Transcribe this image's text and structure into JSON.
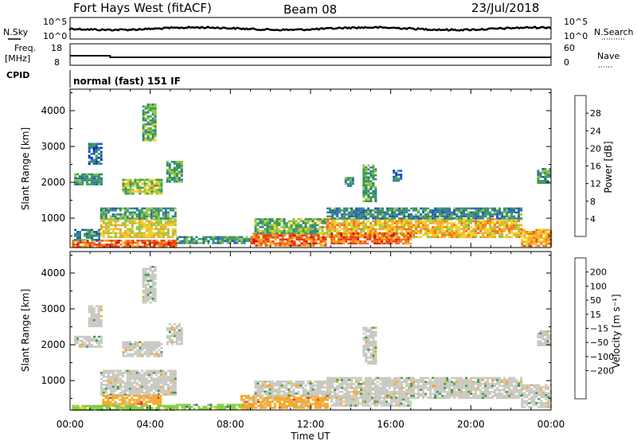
{
  "header": {
    "station": "Fort Hays West (fitACF)",
    "beam": "Beam 08",
    "date": "23/Jul/2018"
  },
  "strip_panels": {
    "nsky_label": "N.Sky",
    "nsearch_label": "N.Search",
    "nsky_ticks": [
      "10^5",
      "10^0"
    ],
    "nsky_right_ticks": [
      "10^5",
      "10^0"
    ],
    "freq_label_line1": "Freq.",
    "freq_label_line2": "[MHz]",
    "freq_ticks": [
      "18",
      "8"
    ],
    "nave_label": "Nave",
    "nave_ticks": [
      "60",
      "0"
    ],
    "cpid_label": "CPID",
    "cpid_value": "normal (fast) 151 IF"
  },
  "chart_data": [
    {
      "type": "heatmap",
      "name": "power",
      "xlabel": "",
      "ylabel": "Slant Range [km]",
      "x_ticks": [
        "00:00",
        "04:00",
        "08:00",
        "12:00",
        "16:00",
        "20:00",
        "00:00"
      ],
      "x_range_hours": [
        0,
        24
      ],
      "y_ticks": [
        1000,
        2000,
        3000,
        4000
      ],
      "ylim": [
        180,
        4600
      ],
      "colorbar": {
        "label": "Power [dB]",
        "range": [
          0,
          32
        ],
        "ticks": [
          4,
          8,
          12,
          16,
          20,
          24,
          28
        ],
        "colors": [
          "#0022dd",
          "#2255bb",
          "#2e7d8c",
          "#3a9a55",
          "#8cc63f",
          "#f0d020",
          "#f5a623",
          "#f07010",
          "#e83a10",
          "#dd0000"
        ]
      },
      "regions": [
        {
          "t": [
            0.1,
            5.3
          ],
          "r": [
            200,
            400
          ],
          "level": 26
        },
        {
          "t": [
            1.5,
            5.2
          ],
          "r": [
            500,
            1000
          ],
          "level": 18
        },
        {
          "t": [
            1.5,
            5.2
          ],
          "r": [
            1000,
            1300
          ],
          "level": 10
        },
        {
          "t": [
            0.2,
            1.5
          ],
          "r": [
            400,
            700
          ],
          "level": 8
        },
        {
          "t": [
            5.3,
            9.0
          ],
          "r": [
            300,
            500
          ],
          "level": 9
        },
        {
          "t": [
            9.0,
            12.8
          ],
          "r": [
            250,
            600
          ],
          "level": 26
        },
        {
          "t": [
            9.2,
            12.8
          ],
          "r": [
            600,
            1000
          ],
          "level": 12
        },
        {
          "t": [
            12.8,
            22.5
          ],
          "r": [
            500,
            1000
          ],
          "level": 20
        },
        {
          "t": [
            12.8,
            22.5
          ],
          "r": [
            1000,
            1300
          ],
          "level": 8
        },
        {
          "t": [
            13.0,
            17.0
          ],
          "r": [
            300,
            600
          ],
          "level": 26
        },
        {
          "t": [
            22.5,
            24.0
          ],
          "r": [
            250,
            700
          ],
          "level": 22
        },
        {
          "t": [
            0.2,
            1.6
          ],
          "r": [
            1950,
            2250
          ],
          "level": 9
        },
        {
          "t": [
            0.9,
            1.6
          ],
          "r": [
            2500,
            3100
          ],
          "level": 6
        },
        {
          "t": [
            2.6,
            4.6
          ],
          "r": [
            1700,
            2100
          ],
          "level": 15
        },
        {
          "t": [
            4.8,
            5.6
          ],
          "r": [
            2000,
            2600
          ],
          "level": 11
        },
        {
          "t": [
            14.6,
            15.2
          ],
          "r": [
            1500,
            2500
          ],
          "level": 11
        },
        {
          "t": [
            13.7,
            14.1
          ],
          "r": [
            1900,
            2150
          ],
          "level": 9
        },
        {
          "t": [
            16.1,
            16.5
          ],
          "r": [
            2050,
            2350
          ],
          "level": 6
        },
        {
          "t": [
            23.3,
            24.0
          ],
          "r": [
            2000,
            2400
          ],
          "level": 10
        },
        {
          "t": [
            3.6,
            4.3
          ],
          "r": [
            3200,
            4200
          ],
          "level": 12
        }
      ]
    },
    {
      "type": "heatmap",
      "name": "velocity",
      "xlabel": "Time UT",
      "ylabel": "Slant Range [km]",
      "x_ticks": [
        "00:00",
        "04:00",
        "08:00",
        "12:00",
        "16:00",
        "20:00",
        "00:00"
      ],
      "x_range_hours": [
        0,
        24
      ],
      "y_ticks": [
        1000,
        2000,
        3000,
        4000
      ],
      "ylim": [
        180,
        4600
      ],
      "colorbar": {
        "label": "Velocity [m s⁻¹]",
        "ticks": [
          200,
          100,
          50,
          15,
          -15,
          -50,
          -100,
          -200
        ],
        "tick_labels": [
          "200",
          "100",
          "50",
          "15",
          "−15",
          "−50",
          "−100",
          "−200"
        ],
        "colors": [
          "#2040c0",
          "#3a6a80",
          "#3a9a55",
          "#80cc40",
          "#c8c8c0",
          "#f0d020",
          "#f5a623",
          "#f07010",
          "#e83a10",
          "#dd0000"
        ]
      },
      "regions": [
        {
          "t": [
            1.5,
            5.2
          ],
          "r": [
            600,
            1300
          ],
          "level": 4
        },
        {
          "t": [
            1.6,
            4.5
          ],
          "r": [
            300,
            600
          ],
          "level": 6
        },
        {
          "t": [
            0.1,
            5.3
          ],
          "r": [
            200,
            320
          ],
          "level": 3
        },
        {
          "t": [
            5.3,
            9.0
          ],
          "r": [
            200,
            350
          ],
          "level": 3
        },
        {
          "t": [
            8.5,
            12.8
          ],
          "r": [
            250,
            600
          ],
          "level": 6
        },
        {
          "t": [
            9.2,
            12.8
          ],
          "r": [
            600,
            1000
          ],
          "level": 4
        },
        {
          "t": [
            12.8,
            22.5
          ],
          "r": [
            500,
            1100
          ],
          "level": 4
        },
        {
          "t": [
            13.0,
            17.0
          ],
          "r": [
            300,
            550
          ],
          "level": 4
        },
        {
          "t": [
            22.5,
            24.0
          ],
          "r": [
            250,
            900
          ],
          "level": 4
        },
        {
          "t": [
            0.2,
            1.6
          ],
          "r": [
            1950,
            2250
          ],
          "level": 4
        },
        {
          "t": [
            0.9,
            1.6
          ],
          "r": [
            2500,
            3100
          ],
          "level": 4
        },
        {
          "t": [
            2.6,
            4.6
          ],
          "r": [
            1700,
            2100
          ],
          "level": 4
        },
        {
          "t": [
            4.8,
            5.6
          ],
          "r": [
            2000,
            2600
          ],
          "level": 4
        },
        {
          "t": [
            14.6,
            15.2
          ],
          "r": [
            1500,
            2500
          ],
          "level": 4
        },
        {
          "t": [
            23.3,
            24.0
          ],
          "r": [
            2000,
            2400
          ],
          "level": 4
        },
        {
          "t": [
            3.6,
            4.3
          ],
          "r": [
            3200,
            4200
          ],
          "level": 4
        }
      ]
    }
  ]
}
